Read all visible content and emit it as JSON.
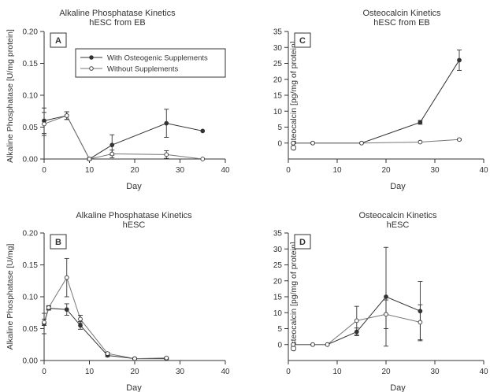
{
  "chart_data": [
    {
      "id": "A",
      "type": "line",
      "panel_label": "A",
      "title": "Alkaline Phosphatase Kinetics",
      "subtitle": "hESC from EB",
      "xlabel": "Day",
      "ylabel": "Alkaline Phosphatase  [U/mg protein]",
      "xlim": [
        0,
        40
      ],
      "ylim": [
        0,
        0.2
      ],
      "xticks": [
        0,
        10,
        20,
        30,
        40
      ],
      "yticks": [
        0.0,
        0.05,
        0.1,
        0.15,
        0.2
      ],
      "ytick_labels": [
        "0.00",
        "0.05",
        "0.10",
        "0.15",
        "0.20"
      ],
      "legend": true,
      "series": [
        {
          "name": "With Osteogenic Supplements",
          "marker": "filled",
          "x": [
            0,
            5,
            10,
            15,
            27,
            35
          ],
          "y": [
            0.06,
            0.068,
            0.0,
            0.022,
            0.056,
            0.044
          ],
          "err": [
            0.02,
            0.006,
            0.002,
            0.016,
            0.022,
            0.0
          ]
        },
        {
          "name": "Without Supplements",
          "marker": "open",
          "x": [
            0,
            5,
            10,
            15,
            27,
            35
          ],
          "y": [
            0.055,
            0.068,
            0.0,
            0.008,
            0.007,
            0.0
          ],
          "err": [
            0.018,
            0.006,
            0.002,
            0.006,
            0.006,
            0.0
          ]
        }
      ]
    },
    {
      "id": "C",
      "type": "line",
      "panel_label": "C",
      "title": "Osteocalcin Kinetics",
      "subtitle": "hESC from EB",
      "xlabel": "Day",
      "ylabel": "Osteocalcin  [pg/mg of protein]",
      "xlim": [
        0,
        40
      ],
      "ylim": [
        -5,
        35
      ],
      "xticks": [
        0,
        10,
        20,
        30,
        40
      ],
      "yticks": [
        0,
        5,
        10,
        15,
        20,
        25,
        30,
        35
      ],
      "ytick_labels": [
        "0",
        "5",
        "10",
        "15",
        "20",
        "25",
        "30",
        "35"
      ],
      "legend": false,
      "series": [
        {
          "marker": "filled",
          "x": [
            1,
            5,
            15,
            27,
            35
          ],
          "y": [
            0,
            0,
            0,
            6.5,
            26
          ],
          "err": [
            0,
            0,
            0,
            0.6,
            3.2
          ]
        },
        {
          "marker": "open",
          "x": [
            1,
            5,
            15,
            27,
            35
          ],
          "y": [
            0,
            0,
            0,
            0.3,
            1.1
          ],
          "err": [
            0,
            0,
            0,
            0,
            0.2
          ]
        }
      ]
    },
    {
      "id": "B",
      "type": "line",
      "panel_label": "B",
      "title": "Alkaline Phosphatase Kinetics",
      "subtitle": "hESC",
      "xlabel": "Day",
      "ylabel": "Alkaline Phosphatase [U/mg]",
      "xlim": [
        0,
        40
      ],
      "ylim": [
        0,
        0.2
      ],
      "xticks": [
        0,
        10,
        20,
        30,
        40
      ],
      "yticks": [
        0.0,
        0.05,
        0.1,
        0.15,
        0.2
      ],
      "ytick_labels": [
        "0.00",
        "0.05",
        "0.10",
        "0.15",
        "0.20"
      ],
      "legend": false,
      "series": [
        {
          "marker": "filled",
          "x": [
            0,
            1,
            5,
            8,
            14,
            20,
            27
          ],
          "y": [
            0.058,
            0.082,
            0.08,
            0.055,
            0.008,
            0.003,
            0.003
          ],
          "err": [
            0.016,
            0.003,
            0.009,
            0.006,
            0.002,
            0.001,
            0.001
          ]
        },
        {
          "marker": "open",
          "x": [
            0,
            1,
            5,
            8,
            14,
            20,
            27
          ],
          "y": [
            0.06,
            0.083,
            0.13,
            0.065,
            0.011,
            0.003,
            0.004
          ],
          "err": [
            0.005,
            0.003,
            0.03,
            0.006,
            0.002,
            0.001,
            0.001
          ]
        }
      ]
    },
    {
      "id": "D",
      "type": "line",
      "panel_label": "D",
      "title": "Osteocalcin Kinetics",
      "subtitle": "hESC",
      "xlabel": "Day",
      "ylabel": "Osteocalcin [pg/mg of protein]",
      "xlim": [
        0,
        40
      ],
      "ylim": [
        -5,
        35
      ],
      "xticks": [
        0,
        10,
        20,
        30,
        40
      ],
      "yticks": [
        0,
        5,
        10,
        15,
        20,
        25,
        30,
        35
      ],
      "ytick_labels": [
        "0",
        "5",
        "10",
        "15",
        "20",
        "25",
        "30",
        "35"
      ],
      "legend": false,
      "series": [
        {
          "marker": "filled",
          "x": [
            1,
            5,
            8,
            14,
            20,
            27
          ],
          "y": [
            0,
            0,
            0,
            4,
            15,
            10.5
          ],
          "err": [
            0,
            0,
            0,
            1.2,
            15.5,
            9.3
          ]
        },
        {
          "marker": "open",
          "x": [
            1,
            5,
            8,
            14,
            20,
            27
          ],
          "y": [
            0,
            0,
            0,
            7.5,
            9.5,
            7
          ],
          "err": [
            0,
            0,
            0,
            4.5,
            4.5,
            5.5
          ]
        }
      ]
    }
  ]
}
